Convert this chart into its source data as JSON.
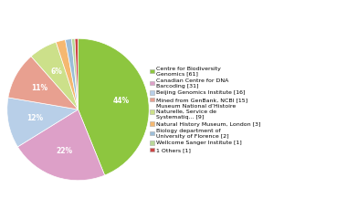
{
  "labels": [
    "Centre for Biodiversity\nGenomics [61]",
    "Canadian Centre for DNA\nBarcoding [31]",
    "Beijing Genomics Institute [16]",
    "Mined from GenBank, NCBI [15]",
    "Museum National d’Histoire\nNaturelle, Service de\nSystematiq... [9]",
    "Natural History Museum, London [3]",
    "Biology department of\nUniversity of Florence [2]",
    "Wellcome Sanger Institute [1]",
    "1 Others [1]"
  ],
  "values": [
    61,
    31,
    16,
    15,
    9,
    3,
    2,
    1,
    1
  ],
  "colors": [
    "#8dc63f",
    "#dda0c8",
    "#b8cfe8",
    "#e8a090",
    "#cce08a",
    "#f5b870",
    "#9bbdd8",
    "#b8d898",
    "#cc4444"
  ],
  "figsize": [
    3.8,
    2.4
  ],
  "dpi": 100
}
